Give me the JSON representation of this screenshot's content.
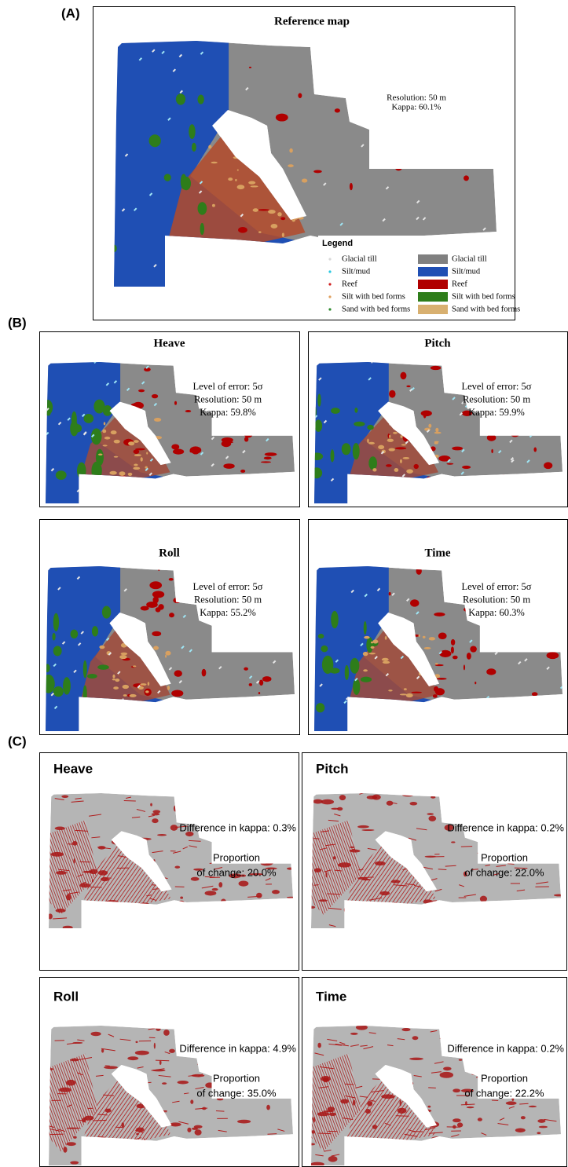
{
  "panel_a": {
    "label": "(A)",
    "title": "Reference map",
    "resolution": "Resolution: 50 m",
    "kappa": "Kappa: 60.1%",
    "legend": {
      "title": "Legend",
      "points": [
        "Glacial till",
        "Silt/mud",
        "Reef",
        "Silt with bed forms",
        "Sand with bed forms"
      ],
      "areas": [
        "Glacial till",
        "Silt/mud",
        "Reef",
        "Silt with bed forms",
        "Sand with bed forms"
      ]
    }
  },
  "panel_b": {
    "label": "(B)",
    "maps": [
      {
        "title": "Heave",
        "error": "Level of error: 5σ",
        "resolution": "Resolution: 50 m",
        "kappa": "Kappa: 59.8%"
      },
      {
        "title": "Pitch",
        "error": "Level of error: 5σ",
        "resolution": "Resolution: 50 m",
        "kappa": "Kappa: 59.9%"
      },
      {
        "title": "Roll",
        "error": "Level of error: 5σ",
        "resolution": "Resolution: 50 m",
        "kappa": "Kappa: 55.2%"
      },
      {
        "title": "Time",
        "error": "Level of error: 5σ",
        "resolution": "Resolution: 50 m",
        "kappa": "Kappa: 60.3%"
      }
    ]
  },
  "panel_c": {
    "label": "(C)",
    "maps": [
      {
        "title": "Heave",
        "difference": "Difference in kappa: 0.3%",
        "proportion": [
          "Proportion",
          "of change: 20.0%"
        ]
      },
      {
        "title": "Pitch",
        "difference": "Difference in kappa: 0.2%",
        "proportion": [
          "Proportion",
          "of change: 22.0%"
        ]
      },
      {
        "title": "Roll",
        "difference": "Difference in kappa: 4.9%",
        "proportion": [
          "Proportion",
          "of change: 35.0%"
        ]
      },
      {
        "title": "Time",
        "difference": "Difference in kappa: 0.2%",
        "proportion": [
          "Proportion",
          "of change: 22.2%"
        ]
      }
    ]
  }
}
